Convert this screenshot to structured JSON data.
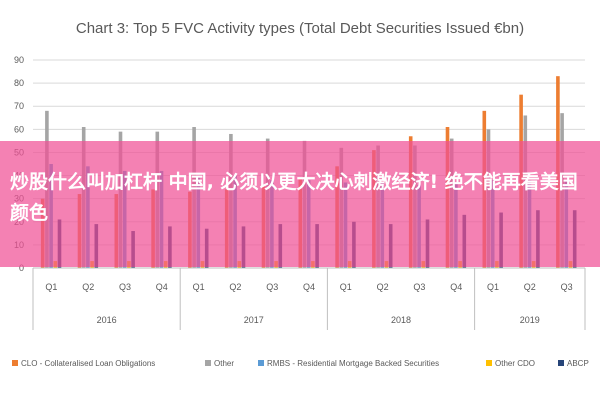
{
  "chart_data": {
    "type": "bar",
    "title": "Chart 3: Top 5 FVC Activity types (Total Debt Securities Issued €bn)",
    "ylim": [
      0,
      90
    ],
    "yticks": [
      0,
      10,
      20,
      30,
      40,
      50,
      60,
      70,
      80,
      90
    ],
    "grid": true,
    "legend_position": "bottom",
    "quarters": [
      "Q1",
      "Q2",
      "Q3",
      "Q4",
      "Q1",
      "Q2",
      "Q3",
      "Q4",
      "Q1",
      "Q2",
      "Q3",
      "Q4",
      "Q1",
      "Q2",
      "Q3"
    ],
    "years": [
      {
        "label": "2016",
        "count": 4
      },
      {
        "label": "2017",
        "count": 4
      },
      {
        "label": "2018",
        "count": 4
      },
      {
        "label": "2019",
        "count": 3
      }
    ],
    "series": [
      {
        "name": "CLO - Collateralised Loan Obligations",
        "color": "#ED7D31",
        "values": [
          30,
          32,
          32,
          34,
          33,
          34,
          36,
          39,
          44,
          51,
          57,
          61,
          68,
          75,
          83
        ]
      },
      {
        "name": "Other",
        "color": "#A5A5A5",
        "values": [
          68,
          61,
          59,
          59,
          61,
          58,
          56,
          55,
          52,
          53,
          53,
          56,
          60,
          66,
          67
        ]
      },
      {
        "name": "RMBS - Residential Mortgage Backed Securities",
        "color": "#5B9BD5",
        "values": [
          45,
          44,
          42,
          42,
          40,
          40,
          38,
          38,
          37,
          37,
          36,
          37,
          38,
          38,
          38
        ]
      },
      {
        "name": "Other CDO",
        "color": "#FFC000",
        "values": [
          3,
          3,
          3,
          3,
          3,
          3,
          3,
          3,
          3,
          3,
          3,
          3,
          3,
          3,
          3
        ]
      },
      {
        "name": "ABCP",
        "color": "#264478",
        "values": [
          21,
          19,
          16,
          18,
          17,
          18,
          19,
          19,
          20,
          19,
          21,
          23,
          24,
          25,
          25
        ]
      }
    ]
  },
  "overlay": {
    "text": "炒股什么叫加杠杆 中国, 必须以更大决心刺激经济! 绝不能再看美国颜色"
  }
}
